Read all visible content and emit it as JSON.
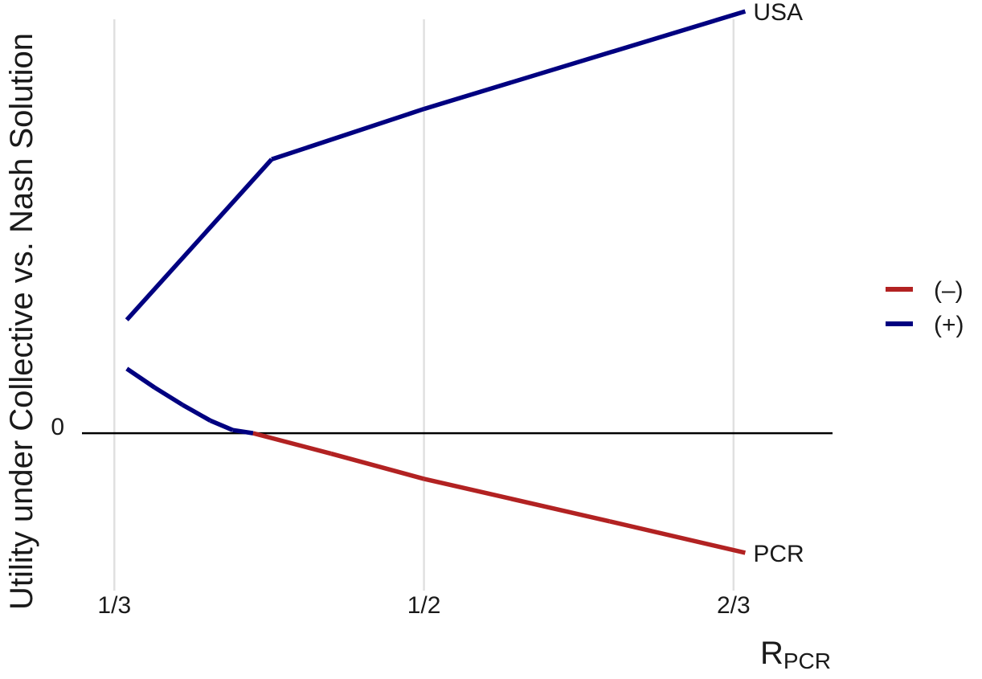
{
  "chart_data": {
    "type": "line",
    "title": "",
    "ylabel": "Utility under Collective vs. Nash Solution",
    "xlabel_main": "R",
    "xlabel_sub": "PCR",
    "x_ticks": [
      {
        "value": 0.3333,
        "label": "1/3"
      },
      {
        "value": 0.5,
        "label": "1/2"
      },
      {
        "value": 0.6667,
        "label": "2/3"
      }
    ],
    "y_ticks": [
      {
        "value": 0,
        "label": "0"
      }
    ],
    "xlim": [
      0.315,
      0.72
    ],
    "ylim": [
      -1.0,
      2.65
    ],
    "grid": "vertical",
    "zero_line": true,
    "legend_position": "right",
    "legend": [
      {
        "label": "(–)",
        "color": "#b22222"
      },
      {
        "label": "(+)",
        "color": "#000080"
      }
    ],
    "series": [
      {
        "name": "USA",
        "points": [
          {
            "x": 0.34,
            "y": 0.72
          },
          {
            "x": 0.418,
            "y": 1.74
          },
          {
            "x": 0.5,
            "y": 2.06
          },
          {
            "x": 0.673,
            "y": 2.68
          }
        ]
      },
      {
        "name": "PCR",
        "points": [
          {
            "x": 0.34,
            "y": 0.41
          },
          {
            "x": 0.355,
            "y": 0.29
          },
          {
            "x": 0.37,
            "y": 0.18
          },
          {
            "x": 0.385,
            "y": 0.08
          },
          {
            "x": 0.397,
            "y": 0.02
          },
          {
            "x": 0.408,
            "y": 0.0
          },
          {
            "x": 0.45,
            "y": -0.13
          },
          {
            "x": 0.5,
            "y": -0.29
          },
          {
            "x": 0.6,
            "y": -0.56
          },
          {
            "x": 0.673,
            "y": -0.76
          }
        ]
      }
    ]
  }
}
